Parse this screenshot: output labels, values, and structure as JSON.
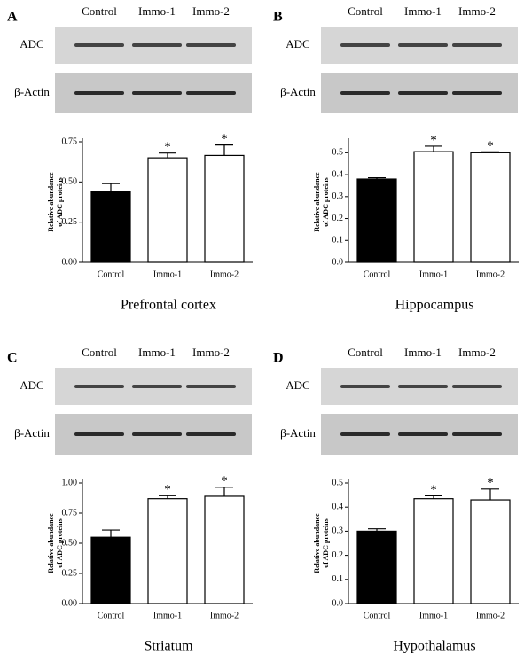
{
  "chart_data": [
    {
      "type": "bar",
      "panel": "A",
      "title": "Prefrontal cortex",
      "blot_lanes": [
        "Control",
        "Immo-1",
        "Immo-2"
      ],
      "blot_rows": [
        "ADC",
        "β-Actin"
      ],
      "ylabel": [
        "Relative abundance",
        "of ADC proteins"
      ],
      "categories": [
        "Control",
        "Immo-1",
        "Immo-2"
      ],
      "values": [
        0.44,
        0.65,
        0.665
      ],
      "errors": [
        0.05,
        0.03,
        0.065
      ],
      "significance": [
        null,
        "*",
        "*"
      ],
      "colors": [
        "#000000",
        "#ffffff",
        "#ffffff"
      ],
      "ylim": [
        0,
        0.75
      ],
      "yticks": [
        {
          "value": 0,
          "label": "0.00"
        },
        0.25,
        {
          "value": 0.5,
          "label": "0.50"
        },
        0.75
      ]
    },
    {
      "type": "bar",
      "panel": "B",
      "title": "Hippocampus",
      "blot_lanes": [
        "Control",
        "Immo-1",
        "Immo-2"
      ],
      "blot_rows": [
        "ADC",
        "β-Actin"
      ],
      "ylabel": [
        "Relative abundance",
        "of ADC proteins"
      ],
      "categories": [
        "Control",
        "Immo-1",
        "Immo-2"
      ],
      "values": [
        0.38,
        0.505,
        0.5
      ],
      "errors": [
        0.006,
        0.025,
        0.004
      ],
      "significance": [
        null,
        "*",
        "*"
      ],
      "colors": [
        "#000000",
        "#ffffff",
        "#ffffff"
      ],
      "ylim": [
        0,
        0.55
      ],
      "yticks": [
        {
          "value": 0,
          "label": "0.0"
        },
        0.1,
        0.2,
        0.3,
        0.4,
        0.5
      ]
    },
    {
      "type": "bar",
      "panel": "C",
      "title": "Striatum",
      "blot_lanes": [
        "Control",
        "Immo-1",
        "Immo-2"
      ],
      "blot_rows": [
        "ADC",
        "β-Actin"
      ],
      "ylabel": [
        "Relative abundance",
        "of ADC proteins"
      ],
      "categories": [
        "Control",
        "Immo-1",
        "Immo-2"
      ],
      "values": [
        0.55,
        0.87,
        0.89
      ],
      "errors": [
        0.06,
        0.025,
        0.075
      ],
      "significance": [
        null,
        "*",
        "*"
      ],
      "colors": [
        "#000000",
        "#ffffff",
        "#ffffff"
      ],
      "ylim": [
        0,
        1
      ],
      "yticks": [
        {
          "value": 0,
          "label": "0.00"
        },
        0.25,
        {
          "value": 0.5,
          "label": "0.50"
        },
        0.75,
        {
          "value": 1,
          "label": "1.00"
        }
      ]
    },
    {
      "type": "bar",
      "panel": "D",
      "title": "Hypothalamus",
      "blot_lanes": [
        "Control",
        "Immo-1",
        "Immo-2"
      ],
      "blot_rows": [
        "ADC",
        "β-Actin"
      ],
      "ylabel": [
        "Relative abundance",
        "of ADC proteins"
      ],
      "categories": [
        "Control",
        "Immo-1",
        "Immo-2"
      ],
      "values": [
        0.3,
        0.435,
        0.43
      ],
      "errors": [
        0.01,
        0.012,
        0.045
      ],
      "significance": [
        null,
        "*",
        "*"
      ],
      "colors": [
        "#000000",
        "#ffffff",
        "#ffffff"
      ],
      "ylim": [
        0,
        0.5
      ],
      "yticks": [
        {
          "value": 0,
          "label": "0.0"
        },
        0.1,
        0.2,
        0.3,
        0.4,
        0.5
      ]
    }
  ]
}
